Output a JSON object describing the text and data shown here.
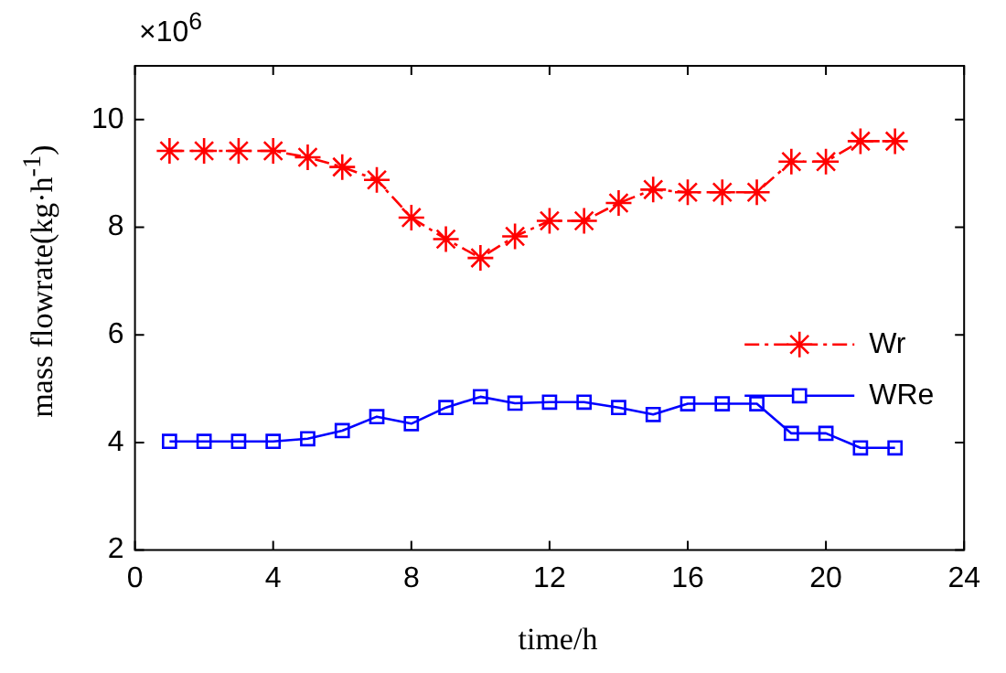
{
  "chart_data": {
    "type": "line",
    "xlabel": "time/h",
    "ylabel": "mass flowrate(kg·h$^{-1}$)",
    "annotations": [
      "×10$^{6}$"
    ],
    "x": [
      1,
      2,
      3,
      4,
      5,
      6,
      7,
      8,
      9,
      10,
      11,
      12,
      13,
      14,
      15,
      16,
      17,
      18,
      19,
      20,
      21,
      22
    ],
    "series": [
      {
        "name": "Wr",
        "color": "#ff0000",
        "marker": "cross",
        "line_style": "dashdot",
        "values": [
          9.42,
          9.42,
          9.42,
          9.42,
          9.3,
          9.12,
          8.88,
          8.18,
          7.78,
          7.43,
          7.83,
          8.12,
          8.12,
          8.45,
          8.7,
          8.65,
          8.65,
          8.65,
          9.22,
          9.22,
          9.6,
          9.6
        ]
      },
      {
        "name": "WRe",
        "color": "#0000ff",
        "marker": "square",
        "line_style": "solid",
        "values": [
          4.02,
          4.02,
          4.02,
          4.02,
          4.07,
          4.22,
          4.48,
          4.35,
          4.65,
          4.85,
          4.73,
          4.75,
          4.75,
          4.65,
          4.52,
          4.72,
          4.72,
          4.72,
          4.17,
          4.17,
          3.9,
          3.9
        ]
      }
    ],
    "xlim": [
      0,
      24
    ],
    "xticks": [
      0,
      4,
      8,
      12,
      16,
      20,
      24
    ],
    "ylim": [
      2,
      11
    ],
    "yticks": [
      2,
      4,
      6,
      8,
      10
    ],
    "legend": "right"
  }
}
